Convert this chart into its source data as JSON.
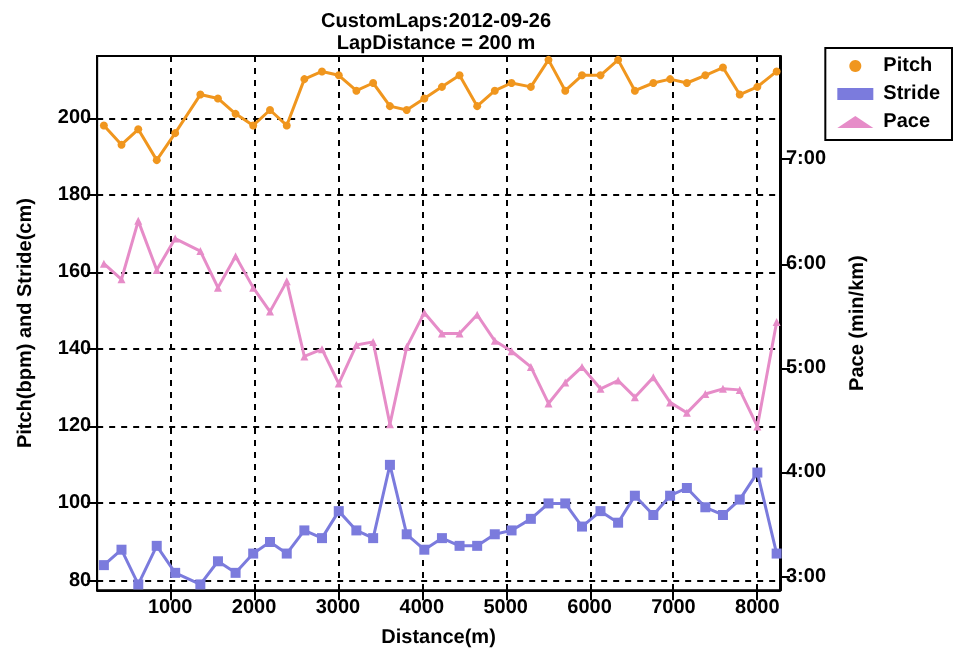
{
  "chart_data": {
    "type": "line",
    "title": "CustomLaps:2012-09-26",
    "subtitle": "LapDistance = 200 m",
    "xlabel": "Distance(m)",
    "ylabel": "Pitch(bpm) and Stride(cm)",
    "y2label": "Pace (min/km)",
    "x": [
      210,
      420,
      620,
      840,
      1060,
      1360,
      1570,
      1780,
      1990,
      2190,
      2390,
      2600,
      2810,
      3010,
      3220,
      3420,
      3620,
      3820,
      4030,
      4240,
      4450,
      4660,
      4870,
      5070,
      5300,
      5510,
      5710,
      5910,
      6130,
      6340,
      6540,
      6760,
      6960,
      7160,
      7380,
      7590,
      7790,
      8000,
      8230
    ],
    "series": [
      {
        "name": "Pitch",
        "color": "#f0961e",
        "marker": "circle",
        "values": [
          198,
          193,
          197,
          189,
          196,
          206,
          205,
          201,
          198,
          202,
          198,
          210,
          212,
          211,
          207,
          209,
          203,
          202,
          205,
          208,
          211,
          203,
          207,
          209,
          208,
          215,
          207,
          211,
          211,
          215,
          207,
          209,
          210,
          209,
          211,
          213,
          206,
          208,
          212
        ]
      },
      {
        "name": "Stride",
        "color": "#7b7bdd",
        "marker": "square",
        "values": [
          84,
          88,
          79,
          89,
          82,
          79,
          85,
          82,
          87,
          90,
          87,
          93,
          91,
          98,
          93,
          91,
          110,
          92,
          88,
          91,
          89,
          89,
          92,
          93,
          96,
          100,
          100,
          94,
          98,
          95,
          102,
          97,
          102,
          104,
          99,
          97,
          101,
          108,
          87
        ]
      },
      {
        "name": "Pace",
        "color": "#e68cc8",
        "marker": "triangle",
        "axis": "y2",
        "values": [
          6.0,
          5.85,
          6.41,
          5.94,
          6.24,
          6.12,
          5.77,
          6.07,
          5.77,
          5.54,
          5.83,
          5.11,
          5.18,
          4.85,
          5.22,
          5.25,
          4.46,
          5.2,
          5.53,
          5.33,
          5.33,
          5.51,
          5.26,
          5.16,
          5.01,
          4.66,
          4.86,
          5.01,
          4.8,
          4.88,
          4.72,
          4.91,
          4.67,
          4.57,
          4.75,
          4.8,
          4.79,
          4.44,
          5.44
        ]
      }
    ],
    "xlim": [
      130,
      8270
    ],
    "xticks": [
      1000,
      2000,
      3000,
      4000,
      5000,
      6000,
      7000,
      8000
    ],
    "ylim": [
      77.5,
      216
    ],
    "yticks": [
      80,
      100,
      120,
      140,
      160,
      180,
      200
    ],
    "y2lim": [
      2.87,
      7.99
    ],
    "y2ticks": [
      {
        "value": 3,
        "label": "3:00"
      },
      {
        "value": 4,
        "label": "4:00"
      },
      {
        "value": 5,
        "label": "5:00"
      },
      {
        "value": 6,
        "label": "6:00"
      },
      {
        "value": 7,
        "label": "7:00"
      }
    ],
    "grid": true,
    "legend": "top right",
    "line_style": "solid"
  }
}
